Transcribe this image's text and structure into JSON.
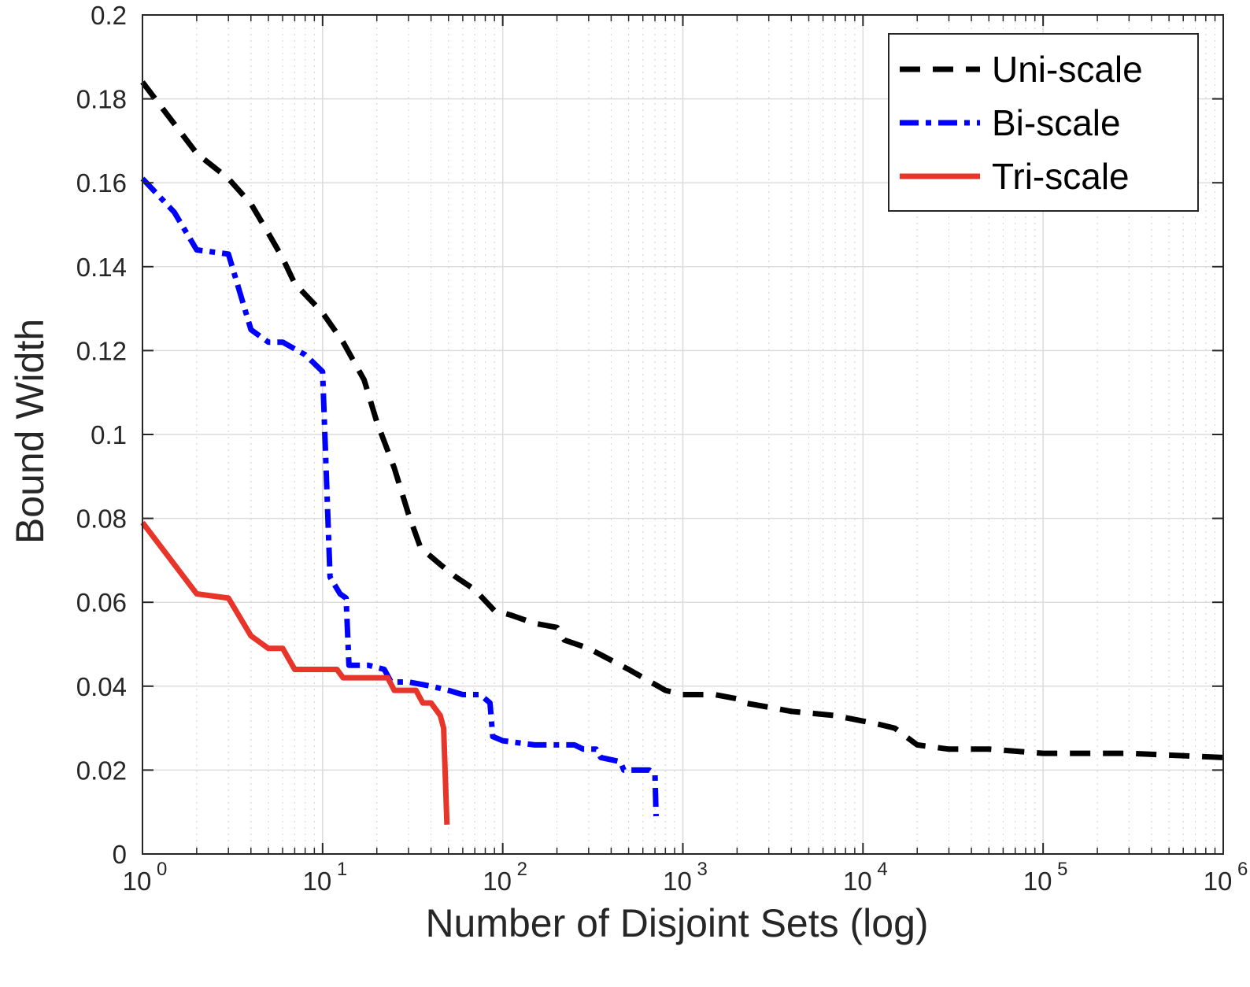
{
  "chart_data": {
    "type": "line",
    "xscale": "log",
    "xlabel": "Number of Disjoint Sets (log)",
    "ylabel": "Bound Width",
    "xlim": [
      1,
      1000000
    ],
    "ylim": [
      0,
      0.2
    ],
    "x_tick_bases": [
      "10",
      "10",
      "10",
      "10",
      "10",
      "10",
      "10"
    ],
    "x_tick_exponents": [
      "0",
      "1",
      "2",
      "3",
      "4",
      "5",
      "6"
    ],
    "y_tick_labels": [
      "0",
      "0.02",
      "0.04",
      "0.06",
      "0.08",
      "0.1",
      "0.12",
      "0.14",
      "0.16",
      "0.18",
      "0.2"
    ],
    "y_ticks": [
      0,
      0.02,
      0.04,
      0.06,
      0.08,
      0.1,
      0.12,
      0.14,
      0.16,
      0.18,
      0.2
    ],
    "grid": true,
    "legend_position": "top-right",
    "series": [
      {
        "name": "Uni-scale",
        "color": "#000000",
        "style": "dashed",
        "points": [
          [
            1,
            0.184
          ],
          [
            2,
            0.167
          ],
          [
            3,
            0.161
          ],
          [
            4,
            0.155
          ],
          [
            5,
            0.148
          ],
          [
            6,
            0.142
          ],
          [
            7,
            0.136
          ],
          [
            10,
            0.129
          ],
          [
            13,
            0.122
          ],
          [
            17,
            0.113
          ],
          [
            20,
            0.103
          ],
          [
            25,
            0.092
          ],
          [
            30,
            0.081
          ],
          [
            35,
            0.073
          ],
          [
            45,
            0.069
          ],
          [
            55,
            0.066
          ],
          [
            70,
            0.063
          ],
          [
            90,
            0.058
          ],
          [
            110,
            0.057
          ],
          [
            150,
            0.055
          ],
          [
            200,
            0.054
          ],
          [
            220,
            0.051
          ],
          [
            300,
            0.049
          ],
          [
            500,
            0.044
          ],
          [
            800,
            0.039
          ],
          [
            1000,
            0.038
          ],
          [
            1500,
            0.038
          ],
          [
            2000,
            0.037
          ],
          [
            2200,
            0.036
          ],
          [
            3000,
            0.035
          ],
          [
            4000,
            0.034
          ],
          [
            7000,
            0.033
          ],
          [
            12000,
            0.031
          ],
          [
            15000,
            0.03
          ],
          [
            20000,
            0.026
          ],
          [
            30000,
            0.025
          ],
          [
            50000,
            0.025
          ],
          [
            100000,
            0.024
          ],
          [
            300000,
            0.024
          ],
          [
            1000000,
            0.023
          ]
        ]
      },
      {
        "name": "Bi-scale",
        "color": "#0000ff",
        "style": "dash-dot",
        "points": [
          [
            1,
            0.161
          ],
          [
            1.5,
            0.153
          ],
          [
            2,
            0.144
          ],
          [
            3,
            0.143
          ],
          [
            4,
            0.125
          ],
          [
            5,
            0.122
          ],
          [
            6,
            0.122
          ],
          [
            8,
            0.119
          ],
          [
            10,
            0.115
          ],
          [
            11,
            0.066
          ],
          [
            12.5,
            0.062
          ],
          [
            13.5,
            0.061
          ],
          [
            14,
            0.045
          ],
          [
            18,
            0.045
          ],
          [
            22,
            0.044
          ],
          [
            24,
            0.041
          ],
          [
            30,
            0.041
          ],
          [
            40,
            0.04
          ],
          [
            50,
            0.039
          ],
          [
            60,
            0.038
          ],
          [
            75,
            0.038
          ],
          [
            85,
            0.036
          ],
          [
            88,
            0.028
          ],
          [
            100,
            0.027
          ],
          [
            150,
            0.026
          ],
          [
            200,
            0.026
          ],
          [
            250,
            0.026
          ],
          [
            280,
            0.025
          ],
          [
            330,
            0.025
          ],
          [
            350,
            0.023
          ],
          [
            450,
            0.022
          ],
          [
            470,
            0.02
          ],
          [
            650,
            0.02
          ],
          [
            700,
            0.019
          ],
          [
            710,
            0.009
          ]
        ]
      },
      {
        "name": "Tri-scale",
        "color": "#e8352a",
        "style": "solid",
        "points": [
          [
            1,
            0.079
          ],
          [
            2,
            0.062
          ],
          [
            3,
            0.061
          ],
          [
            4,
            0.052
          ],
          [
            5,
            0.049
          ],
          [
            6,
            0.049
          ],
          [
            7,
            0.044
          ],
          [
            10,
            0.044
          ],
          [
            12,
            0.044
          ],
          [
            13,
            0.042
          ],
          [
            16,
            0.042
          ],
          [
            20,
            0.042
          ],
          [
            23,
            0.042
          ],
          [
            25,
            0.039
          ],
          [
            30,
            0.039
          ],
          [
            33,
            0.039
          ],
          [
            36,
            0.036
          ],
          [
            40,
            0.036
          ],
          [
            45,
            0.033
          ],
          [
            47,
            0.03
          ],
          [
            49,
            0.007
          ]
        ]
      }
    ]
  }
}
